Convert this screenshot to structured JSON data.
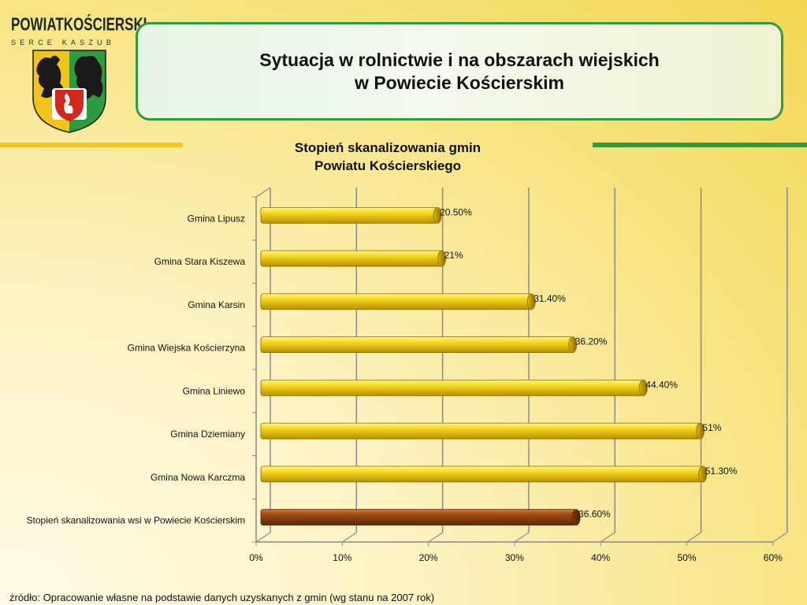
{
  "logo": {
    "name": "POWIATKOŚCIERSKI",
    "tagline": "SERCE KASZUB",
    "crest_icon": "griffin-bear-crest-icon"
  },
  "header": {
    "title_line1": "Sytuacja w rolnictwie i na obszarach wiejskich",
    "title_line2": "w Powiecie Kościerskim"
  },
  "colors": {
    "accent_green": "#2e9b3f",
    "accent_yellow": "#f2c81b",
    "bar_gold": "#f0cc10",
    "bar_highlight": "#8b3a0c"
  },
  "chart_data": {
    "type": "bar",
    "orientation": "horizontal",
    "title_line1": "Stopień skanalizowania gmin",
    "title_line2": "Powiatu Kościerskiego",
    "categories": [
      "Gmina Lipusz",
      "Gmina Stara Kiszewa",
      "Gmina Karsin",
      "Gmina Wiejska Kościerzyna",
      "Gmina Liniewo",
      "Gmina Dziemiany",
      "Gmina Nowa Karczma",
      "Stopień skanalizowania wsi w Powiecie Kościerskim"
    ],
    "values": [
      20.5,
      21,
      31.4,
      36.2,
      44.4,
      51,
      51.3,
      36.6
    ],
    "value_labels": [
      "20.50%",
      "21%",
      "31.40%",
      "36.20%",
      "44.40%",
      "51%",
      "51.30%",
      "36.60%"
    ],
    "highlight_index": 7,
    "xlim": [
      0,
      60
    ],
    "xticks": [
      0,
      10,
      20,
      30,
      40,
      50,
      60
    ],
    "xtick_labels": [
      "0%",
      "10%",
      "20%",
      "30%",
      "40%",
      "50%",
      "60%"
    ],
    "grid": true,
    "legend": "none"
  },
  "footer": {
    "source": "źródło: Opracowanie własne na podstawie danych uzyskanych z gmin (wg stanu na 2007 rok)"
  }
}
